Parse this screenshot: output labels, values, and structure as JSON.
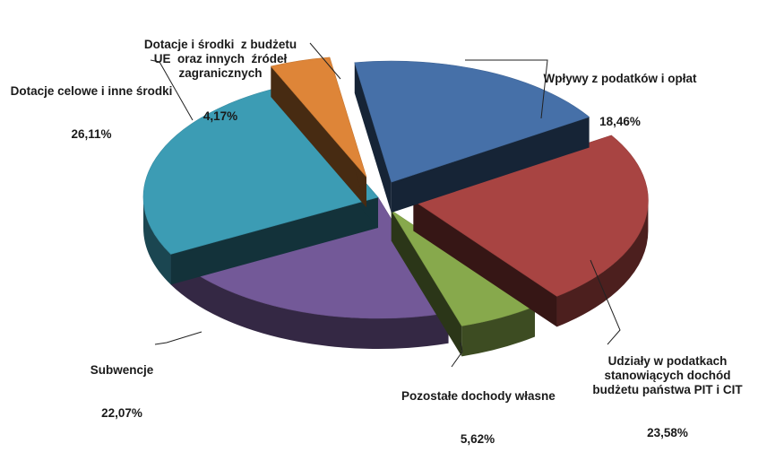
{
  "chart_data": {
    "type": "pie",
    "style": "3d-exploded",
    "title": "",
    "slices": [
      {
        "label": "Wpływy z podatków i opłat",
        "value": 18.46,
        "value_label": "18,46%",
        "color": "#4670a8"
      },
      {
        "label": "Udziały w podatkach\nstanowiących dochód\nbudżetu państwa PIT i CIT",
        "value": 23.58,
        "value_label": "23,58%",
        "color": "#a84442"
      },
      {
        "label": "Pozostałe dochody własne",
        "value": 5.62,
        "value_label": "5,62%",
        "color": "#87a94c"
      },
      {
        "label": "Subwencje",
        "value": 22.07,
        "value_label": "22,07%",
        "color": "#735998"
      },
      {
        "label": "Dotacje celowe i inne środki",
        "value": 26.11,
        "value_label": "26,11%",
        "color": "#3c9cb4"
      },
      {
        "label": "Dotacje i środki  z budżetu\nUE  oraz innych  źródeł\nzagranicznych",
        "value": 4.17,
        "value_label": "4,17%",
        "color": "#de8538"
      }
    ]
  }
}
